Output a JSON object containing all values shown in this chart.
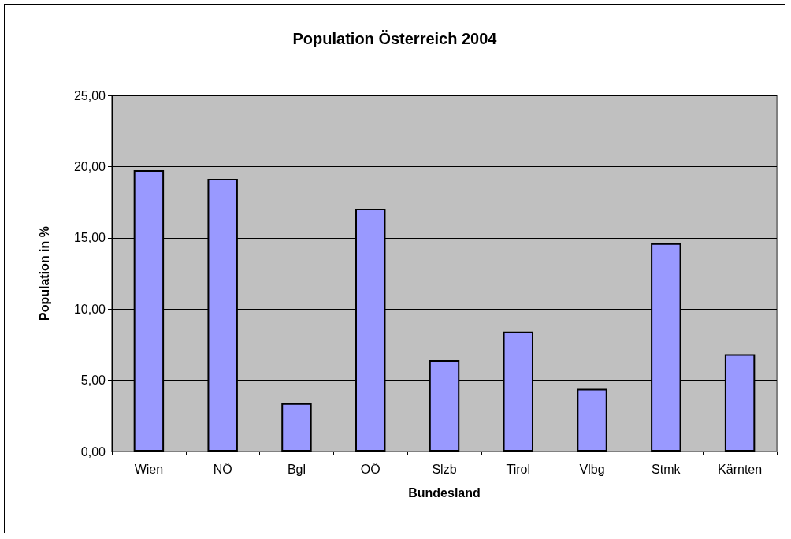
{
  "chart_data": {
    "type": "bar",
    "title": "Population Österreich 2004",
    "xlabel": "Bundesland",
    "ylabel": "Population in %",
    "categories": [
      "Wien",
      "NÖ",
      "Bgl",
      "OÖ",
      "Slzb",
      "Tirol",
      "Vlbg",
      "Stmk",
      "Kärnten"
    ],
    "values": [
      19.74,
      19.14,
      3.39,
      17.03,
      6.41,
      8.42,
      4.4,
      14.62,
      6.83
    ],
    "color": "#9999ff",
    "ylim": [
      0,
      25
    ],
    "yticks": [
      {
        "value": 0,
        "label": "0,00"
      },
      {
        "value": 5,
        "label": "5,00"
      },
      {
        "value": 10,
        "label": "10,00"
      },
      {
        "value": 15,
        "label": "15,00"
      },
      {
        "value": 20,
        "label": "20,00"
      },
      {
        "value": 25,
        "label": "25,00"
      }
    ],
    "grid": "y"
  }
}
